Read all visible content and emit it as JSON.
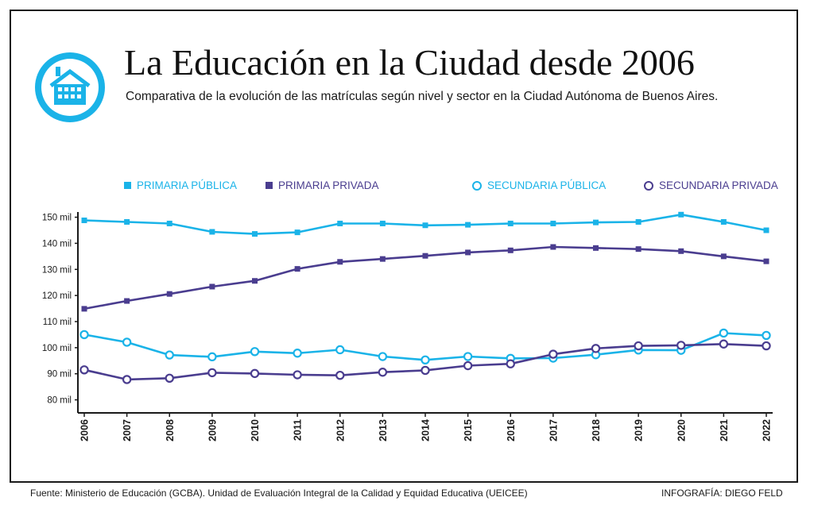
{
  "title": "La Educación en la Ciudad desde 2006",
  "subtitle": "Comparativa de la evolución de las matrículas según nivel y sector en la Ciudad Autónoma de Buenos Aires.",
  "footer": {
    "source": "Fuente: Ministerio de Educación (GCBA). Unidad de Evaluación Integral de la Calidad y Equidad Educativa (UEICEE)",
    "credit": "INFOGRAFÍA: DIEGO FELD"
  },
  "colors": {
    "light": "#1ab3e8",
    "dark": "#4a3d8f",
    "axis": "#1a1a1a"
  },
  "icons": {
    "logo": "school-building-icon"
  },
  "chart_data": {
    "type": "line",
    "title": "La Educación en la Ciudad desde 2006",
    "xlabel": "",
    "ylabel": "",
    "ylim": [
      75,
      152
    ],
    "yticks": [
      80,
      90,
      100,
      110,
      120,
      130,
      140,
      150
    ],
    "ytick_labels": [
      "80 mil",
      "90 mil",
      "100 mil",
      "110 mil",
      "120 mil",
      "130 mil",
      "140 mil",
      "150 mil"
    ],
    "x": [
      "2006",
      "2007",
      "2008",
      "2009",
      "2010",
      "2011",
      "2012",
      "2013",
      "2014",
      "2015",
      "2016",
      "2017",
      "2018",
      "2019",
      "2020",
      "2021",
      "2022"
    ],
    "legend_position": "top",
    "series": [
      {
        "name": "PRIMARIA PÚBLICA",
        "color": "#1ab3e8",
        "marker": "square",
        "values": [
          148.8,
          148.2,
          147.6,
          144.4,
          143.6,
          144.2,
          147.6,
          147.6,
          146.9,
          147.1,
          147.6,
          147.6,
          148.0,
          148.2,
          151.0,
          148.2,
          145.0
        ]
      },
      {
        "name": "PRIMARIA PRIVADA",
        "color": "#4a3d8f",
        "marker": "square",
        "values": [
          114.9,
          117.9,
          120.6,
          123.4,
          125.6,
          130.2,
          132.9,
          134.0,
          135.2,
          136.5,
          137.3,
          138.6,
          138.2,
          137.8,
          137.0,
          135.0,
          133.1
        ]
      },
      {
        "name": "SECUNDARIA PÚBLICA",
        "color": "#1ab3e8",
        "marker": "circle",
        "values": [
          105.0,
          102.1,
          97.2,
          96.5,
          98.5,
          97.9,
          99.2,
          96.6,
          95.3,
          96.6,
          95.9,
          96.0,
          97.3,
          99.1,
          99.0,
          105.6,
          104.7
        ]
      },
      {
        "name": "SECUNDARIA PRIVADA",
        "color": "#4a3d8f",
        "marker": "circle",
        "values": [
          91.5,
          87.8,
          88.3,
          90.4,
          90.1,
          89.6,
          89.4,
          90.6,
          91.3,
          93.1,
          93.8,
          97.5,
          99.7,
          100.7,
          100.9,
          101.4,
          100.7
        ]
      }
    ]
  }
}
